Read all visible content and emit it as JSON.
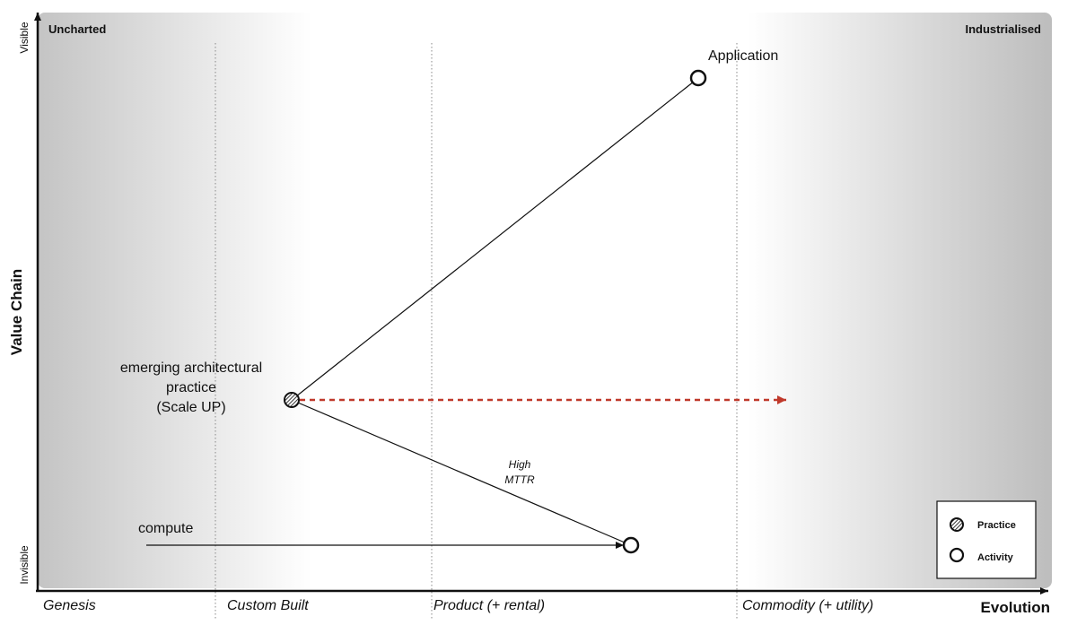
{
  "map": {
    "corner_left": "Uncharted",
    "corner_right": "Industrialised",
    "y_axis": {
      "title": "Value Chain",
      "top": "Visible",
      "bottom": "Invisible"
    },
    "x_axis": {
      "title": "Evolution",
      "stages": [
        "Genesis",
        "Custom Built",
        "Product (+ rental)",
        "Commodity (+ utility)"
      ]
    },
    "nodes": {
      "application": {
        "label": "Application",
        "type": "activity"
      },
      "practice": {
        "label_lines": [
          "emerging architectural",
          "practice",
          "(Scale UP)"
        ],
        "type": "practice"
      },
      "compute": {
        "label": "compute",
        "type": "activity"
      }
    },
    "annotation": [
      "High",
      "MTTR"
    ],
    "movement_color": "#c0392b",
    "legend": {
      "practice": "Practice",
      "activity": "Activity"
    }
  }
}
